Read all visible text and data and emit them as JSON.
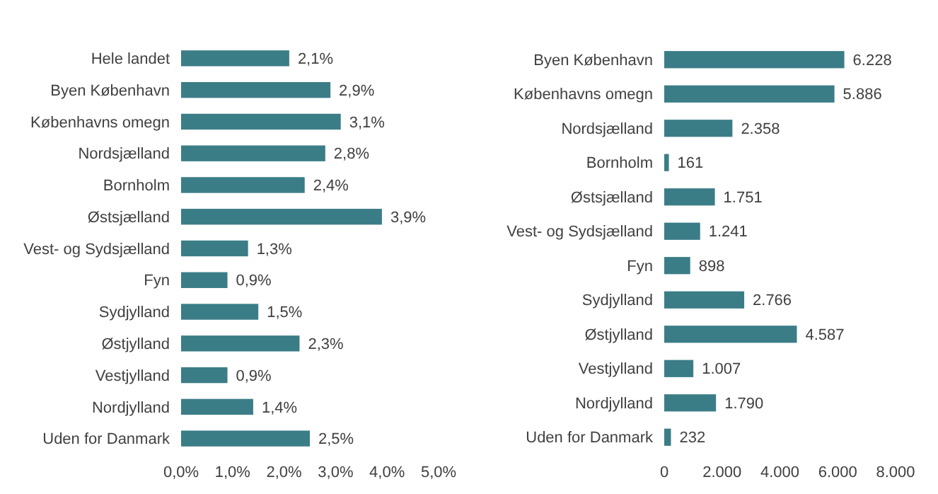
{
  "chart_data": [
    {
      "type": "bar",
      "orientation": "horizontal",
      "categories": [
        "Hele landet",
        "Byen København",
        "Københavns omegn",
        "Nordsjælland",
        "Bornholm",
        "Østsjælland",
        "Vest- og Sydsjælland",
        "Fyn",
        "Sydjylland",
        "Østjylland",
        "Vestjylland",
        "Nordjylland",
        "Uden for Danmark"
      ],
      "values": [
        2.1,
        2.9,
        3.1,
        2.8,
        2.4,
        3.9,
        1.3,
        0.9,
        1.5,
        2.3,
        0.9,
        1.4,
        2.5
      ],
      "color": "#3b7d87",
      "value_labels": [
        "2,1%",
        "2,9%",
        "3,1%",
        "2,8%",
        "2,4%",
        "3,9%",
        "1,3%",
        "0,9%",
        "1,5%",
        "2,3%",
        "0,9%",
        "1,4%",
        "2,5%"
      ],
      "xlim": [
        0,
        5
      ],
      "xticks": [
        {
          "value": 0,
          "label": "0,0%"
        },
        {
          "value": 1,
          "label": "1,0%"
        },
        {
          "value": 2,
          "label": "2,0%"
        },
        {
          "value": 3,
          "label": "3,0%"
        },
        {
          "value": 4,
          "label": "4,0%"
        },
        {
          "value": 5,
          "label": "5,0%"
        }
      ],
      "grid": false
    },
    {
      "type": "bar",
      "orientation": "horizontal",
      "categories": [
        "Byen København",
        "Københavns omegn",
        "Nordsjælland",
        "Bornholm",
        "Østsjælland",
        "Vest- og Sydsjælland",
        "Fyn",
        "Sydjylland",
        "Østjylland",
        "Vestjylland",
        "Nordjylland",
        "Uden for Danmark"
      ],
      "values": [
        6228,
        5886,
        2358,
        161,
        1751,
        1241,
        898,
        2766,
        4587,
        1007,
        1790,
        232
      ],
      "color": "#3b7d87",
      "value_labels": [
        "6.228",
        "5.886",
        "2.358",
        "161",
        "1.751",
        "1.241",
        "898",
        "2.766",
        "4.587",
        "1.007",
        "1.790",
        "232"
      ],
      "xlim": [
        0,
        8000
      ],
      "xticks": [
        {
          "value": 0,
          "label": "0"
        },
        {
          "value": 2000,
          "label": "2.000"
        },
        {
          "value": 4000,
          "label": "4.000"
        },
        {
          "value": 6000,
          "label": "6.000"
        },
        {
          "value": 8000,
          "label": "8.000"
        }
      ],
      "grid": false
    }
  ]
}
